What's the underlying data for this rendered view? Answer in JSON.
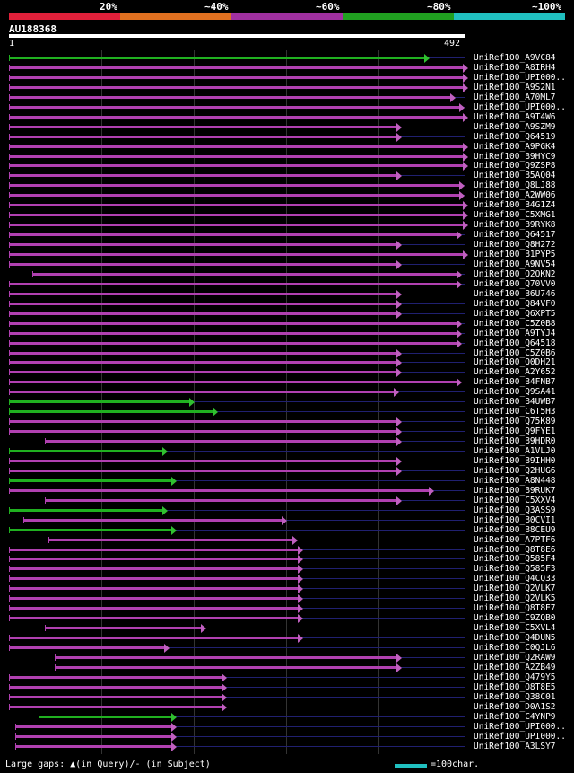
{
  "legend": [
    {
      "label": "20%",
      "color": "#e0203a"
    },
    {
      "label": "~40%",
      "color": "#e07020"
    },
    {
      "label": "~60%",
      "color": "#a030a0"
    },
    {
      "label": "~80%",
      "color": "#20a020"
    },
    {
      "label": "~100%",
      "color": "#20c0c0"
    }
  ],
  "query": {
    "id": "AU188368",
    "start": "1",
    "end": "492"
  },
  "colors": {
    "magenta": "#b040b0",
    "green": "#20b020",
    "arrow_magenta": "#c060c0",
    "arrow_green": "#30c030",
    "tail": "#202070"
  },
  "rows": [
    {
      "label": "UniRef100_A9VC84",
      "start": 1,
      "end": 450,
      "c": "green"
    },
    {
      "label": "UniRef100_A8IRH4",
      "start": 1,
      "end": 492,
      "c": "magenta"
    },
    {
      "label": "UniRef100_UPI000..",
      "start": 1,
      "end": 492,
      "c": "magenta"
    },
    {
      "label": "UniRef100_A9S2N1",
      "start": 1,
      "end": 492,
      "c": "magenta"
    },
    {
      "label": "UniRef100_A70ML7",
      "start": 1,
      "end": 478,
      "c": "magenta"
    },
    {
      "label": "UniRef100_UPI000..",
      "start": 1,
      "end": 488,
      "c": "magenta"
    },
    {
      "label": "UniRef100_A9T4W6",
      "start": 1,
      "end": 492,
      "c": "magenta"
    },
    {
      "label": "UniRef100_A9SZM9",
      "start": 1,
      "end": 420,
      "c": "magenta"
    },
    {
      "label": "UniRef100_Q64519",
      "start": 1,
      "end": 420,
      "c": "magenta"
    },
    {
      "label": "UniRef100_A9PGK4",
      "start": 1,
      "end": 492,
      "c": "magenta"
    },
    {
      "label": "UniRef100_B9HYC9",
      "start": 1,
      "end": 492,
      "c": "magenta"
    },
    {
      "label": "UniRef100_Q9ZSP8",
      "start": 1,
      "end": 492,
      "c": "magenta"
    },
    {
      "label": "UniRef100_B5AQ04",
      "start": 1,
      "end": 420,
      "c": "magenta"
    },
    {
      "label": "UniRef100_Q8LJ88",
      "start": 1,
      "end": 488,
      "c": "magenta"
    },
    {
      "label": "UniRef100_A2WW06",
      "start": 1,
      "end": 488,
      "c": "magenta"
    },
    {
      "label": "UniRef100_B4G1Z4",
      "start": 1,
      "end": 492,
      "c": "magenta"
    },
    {
      "label": "UniRef100_C5XMG1",
      "start": 1,
      "end": 492,
      "c": "magenta"
    },
    {
      "label": "UniRef100_B9RYK8",
      "start": 1,
      "end": 492,
      "c": "magenta"
    },
    {
      "label": "UniRef100_Q64517",
      "start": 1,
      "end": 485,
      "c": "magenta"
    },
    {
      "label": "UniRef100_Q8H272",
      "start": 1,
      "end": 420,
      "c": "magenta"
    },
    {
      "label": "UniRef100_B1PYP5",
      "start": 1,
      "end": 492,
      "c": "magenta"
    },
    {
      "label": "UniRef100_A9NV54",
      "start": 1,
      "end": 420,
      "c": "magenta"
    },
    {
      "label": "UniRef100_Q2QKN2",
      "start": 26,
      "end": 485,
      "c": "magenta"
    },
    {
      "label": "UniRef100_Q70VV0",
      "start": 1,
      "end": 485,
      "c": "magenta"
    },
    {
      "label": "UniRef100_B6U746",
      "start": 1,
      "end": 420,
      "c": "magenta"
    },
    {
      "label": "UniRef100_Q84VF0",
      "start": 1,
      "end": 420,
      "c": "magenta"
    },
    {
      "label": "UniRef100_Q6XPT5",
      "start": 1,
      "end": 420,
      "c": "magenta"
    },
    {
      "label": "UniRef100_C5Z0B8",
      "start": 1,
      "end": 485,
      "c": "magenta"
    },
    {
      "label": "UniRef100_A9TYJ4",
      "start": 1,
      "end": 485,
      "c": "magenta"
    },
    {
      "label": "UniRef100_Q64518",
      "start": 1,
      "end": 485,
      "c": "magenta"
    },
    {
      "label": "UniRef100_C5Z0B6",
      "start": 1,
      "end": 420,
      "c": "magenta"
    },
    {
      "label": "UniRef100_Q0DH21",
      "start": 1,
      "end": 420,
      "c": "magenta"
    },
    {
      "label": "UniRef100_A2Y652",
      "start": 1,
      "end": 420,
      "c": "magenta"
    },
    {
      "label": "UniRef100_B4FNB7",
      "start": 1,
      "end": 485,
      "c": "magenta"
    },
    {
      "label": "UniRef100_Q9SA41",
      "start": 1,
      "end": 418,
      "c": "magenta"
    },
    {
      "label": "UniRef100_B4UWB7",
      "start": 1,
      "end": 197,
      "c": "green"
    },
    {
      "label": "UniRef100_C6T5H3",
      "start": 1,
      "end": 222,
      "c": "green"
    },
    {
      "label": "UniRef100_Q75K89",
      "start": 1,
      "end": 420,
      "c": "magenta"
    },
    {
      "label": "UniRef100_Q9FYE1",
      "start": 1,
      "end": 420,
      "c": "magenta"
    },
    {
      "label": "UniRef100_B9HDR0",
      "start": 40,
      "end": 420,
      "c": "magenta"
    },
    {
      "label": "UniRef100_A1VLJ0",
      "start": 1,
      "end": 168,
      "c": "green"
    },
    {
      "label": "UniRef100_B9IHH0",
      "start": 1,
      "end": 420,
      "c": "magenta"
    },
    {
      "label": "UniRef100_Q2HUG6",
      "start": 1,
      "end": 420,
      "c": "magenta"
    },
    {
      "label": "UniRef100_A8N448",
      "start": 1,
      "end": 178,
      "c": "green"
    },
    {
      "label": "UniRef100_B9RUK7",
      "start": 1,
      "end": 455,
      "c": "magenta"
    },
    {
      "label": "UniRef100_C5XXV4",
      "start": 40,
      "end": 420,
      "c": "magenta"
    },
    {
      "label": "UniRef100_Q3ASS9",
      "start": 1,
      "end": 168,
      "c": "green"
    },
    {
      "label": "UniRef100_B0CVI1",
      "start": 16,
      "end": 297,
      "c": "magenta"
    },
    {
      "label": "UniRef100_B8CEU9",
      "start": 1,
      "end": 178,
      "c": "green"
    },
    {
      "label": "UniRef100_A7PTF6",
      "start": 44,
      "end": 308,
      "c": "magenta"
    },
    {
      "label": "UniRef100_Q8T8E6",
      "start": 1,
      "end": 314,
      "c": "magenta"
    },
    {
      "label": "UniRef100_Q585F4",
      "start": 1,
      "end": 314,
      "c": "magenta"
    },
    {
      "label": "UniRef100_Q585F3",
      "start": 1,
      "end": 314,
      "c": "magenta"
    },
    {
      "label": "UniRef100_Q4CQ33",
      "start": 1,
      "end": 314,
      "c": "magenta"
    },
    {
      "label": "UniRef100_Q2VLK7",
      "start": 1,
      "end": 314,
      "c": "magenta"
    },
    {
      "label": "UniRef100_Q2VLK5",
      "start": 1,
      "end": 314,
      "c": "magenta"
    },
    {
      "label": "UniRef100_Q8T8E7",
      "start": 1,
      "end": 314,
      "c": "magenta"
    },
    {
      "label": "UniRef100_C9ZQB0",
      "start": 1,
      "end": 314,
      "c": "magenta"
    },
    {
      "label": "UniRef100_C5XVL4",
      "start": 40,
      "end": 210,
      "c": "magenta"
    },
    {
      "label": "UniRef100_Q4DUN5",
      "start": 1,
      "end": 314,
      "c": "magenta"
    },
    {
      "label": "UniRef100_C0QJL6",
      "start": 1,
      "end": 170,
      "c": "magenta"
    },
    {
      "label": "UniRef100_Q2RAW9",
      "start": 50,
      "end": 420,
      "c": "magenta"
    },
    {
      "label": "UniRef100_A2ZB49",
      "start": 50,
      "end": 420,
      "c": "magenta"
    },
    {
      "label": "UniRef100_Q479Y5",
      "start": 1,
      "end": 232,
      "c": "magenta"
    },
    {
      "label": "UniRef100_Q8T8E5",
      "start": 1,
      "end": 232,
      "c": "magenta"
    },
    {
      "label": "UniRef100_Q38C01",
      "start": 1,
      "end": 232,
      "c": "magenta"
    },
    {
      "label": "UniRef100_D0A1S2",
      "start": 1,
      "end": 232,
      "c": "magenta"
    },
    {
      "label": "UniRef100_C4YNP9",
      "start": 33,
      "end": 178,
      "c": "green"
    },
    {
      "label": "UniRef100_UPI000..",
      "start": 8,
      "end": 178,
      "c": "magenta"
    },
    {
      "label": "UniRef100_UPI000..",
      "start": 8,
      "end": 178,
      "c": "magenta"
    },
    {
      "label": "UniRef100_A3LSY7",
      "start": 8,
      "end": 178,
      "c": "magenta"
    }
  ],
  "footer": {
    "legend_text": "Large gaps: ▲(in Query)/- (in Subject)",
    "scale_text": "=100char."
  }
}
